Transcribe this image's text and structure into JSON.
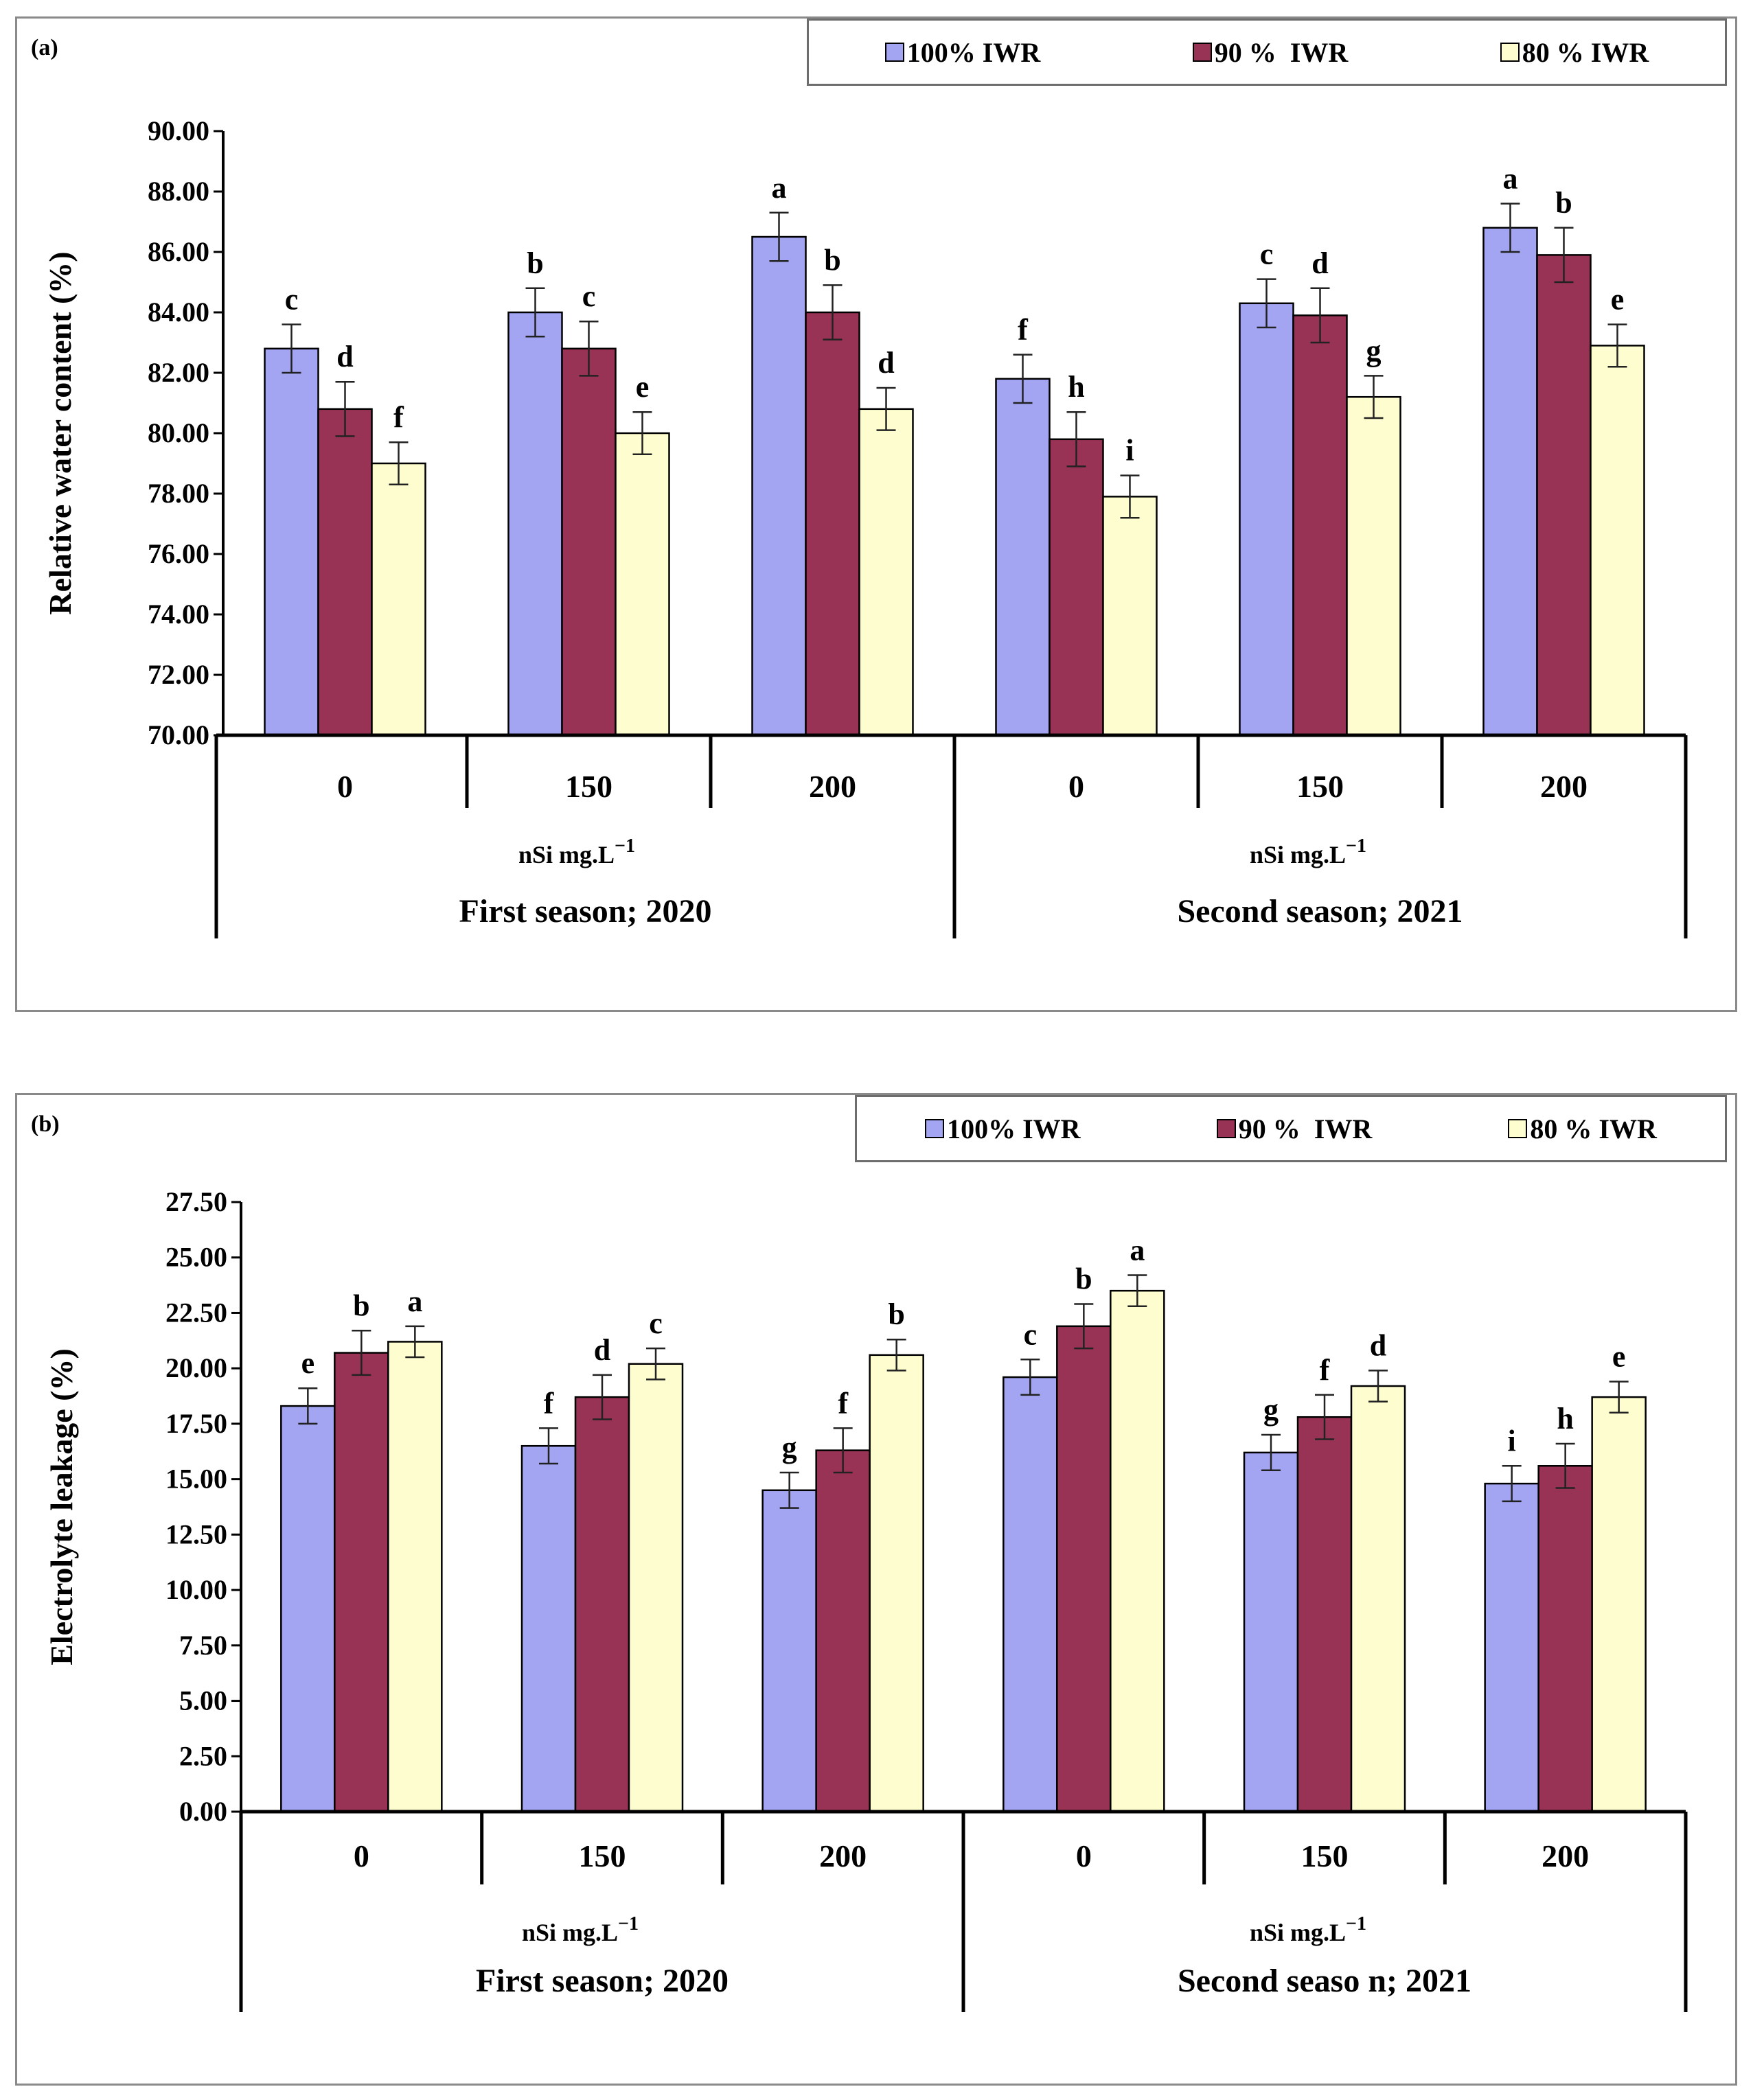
{
  "chart_data": [
    {
      "type": "bar",
      "panel_label": "(a)",
      "ylabel": "Relative water content (%)",
      "ylim": [
        70,
        90
      ],
      "yticks": [
        "70.00",
        "72.00",
        "74.00",
        "76.00",
        "78.00",
        "80.00",
        "82.00",
        "84.00",
        "86.00",
        "88.00",
        "90.00"
      ],
      "grid": false,
      "legend_position": "top-right",
      "categories": [
        "0",
        "150",
        "200",
        "0",
        "150",
        "200"
      ],
      "unit_label": "nSi mg.L",
      "unit_superscript": "−1",
      "groups": [
        {
          "label": "First season; 2020",
          "categories": [
            "0",
            "150",
            "200"
          ]
        },
        {
          "label": "Second season; 2021",
          "categories": [
            "0",
            "150",
            "200"
          ]
        }
      ],
      "series": [
        {
          "name": "100% IWR",
          "color": "#a3a5f2",
          "values": [
            82.8,
            84.0,
            86.5,
            81.8,
            84.3,
            86.8
          ],
          "errors": [
            0.8,
            0.8,
            0.8,
            0.8,
            0.8,
            0.8
          ],
          "letters": [
            "c",
            "b",
            "a",
            "f",
            "c",
            "a"
          ]
        },
        {
          "name": "90 %  IWR",
          "color": "#993355",
          "values": [
            80.8,
            82.8,
            84.0,
            79.8,
            83.9,
            85.9
          ],
          "errors": [
            0.9,
            0.9,
            0.9,
            0.9,
            0.9,
            0.9
          ],
          "letters": [
            "d",
            "c",
            "b",
            "h",
            "d",
            "b"
          ]
        },
        {
          "name": "80 % IWR",
          "color": "#fdfdcf",
          "values": [
            79.0,
            80.0,
            80.8,
            77.9,
            81.2,
            82.9
          ],
          "errors": [
            0.7,
            0.7,
            0.7,
            0.7,
            0.7,
            0.7
          ],
          "letters": [
            "f",
            "e",
            "d",
            "i",
            "g",
            "e"
          ]
        }
      ]
    },
    {
      "type": "bar",
      "panel_label": "(b)",
      "ylabel": "Electrolyte leakage (%)",
      "ylim": [
        0,
        27.5
      ],
      "yticks": [
        "0.00",
        "2.50",
        "5.00",
        "7.50",
        "10.00",
        "12.50",
        "15.00",
        "17.50",
        "20.00",
        "22.50",
        "25.00",
        "27.50"
      ],
      "grid": false,
      "legend_position": "top-right",
      "categories": [
        "0",
        "150",
        "200",
        "0",
        "150",
        "200"
      ],
      "unit_label": "nSi mg.L",
      "unit_superscript": "−1",
      "groups": [
        {
          "label": "First season; 2020",
          "categories": [
            "0",
            "150",
            "200"
          ]
        },
        {
          "label": "Second seaso n; 2021",
          "categories": [
            "0",
            "150",
            "200"
          ]
        }
      ],
      "series": [
        {
          "name": "100% IWR",
          "color": "#a3a5f2",
          "values": [
            18.3,
            16.5,
            14.5,
            19.6,
            16.2,
            14.8
          ],
          "errors": [
            0.8,
            0.8,
            0.8,
            0.8,
            0.8,
            0.8
          ],
          "letters": [
            "e",
            "f",
            "g",
            "c",
            "g",
            "i"
          ]
        },
        {
          "name": "90 %  IWR",
          "color": "#993355",
          "values": [
            20.7,
            18.7,
            16.3,
            21.9,
            17.8,
            15.6
          ],
          "errors": [
            1.0,
            1.0,
            1.0,
            1.0,
            1.0,
            1.0
          ],
          "letters": [
            "b",
            "d",
            "f",
            "b",
            "f",
            "h"
          ]
        },
        {
          "name": "80 % IWR",
          "color": "#fdfdcf",
          "values": [
            21.2,
            20.2,
            20.6,
            23.5,
            19.2,
            18.7
          ],
          "errors": [
            0.7,
            0.7,
            0.7,
            0.7,
            0.7,
            0.7
          ],
          "letters": [
            "a",
            "c",
            "b",
            "a",
            "d",
            "e"
          ]
        }
      ]
    }
  ]
}
